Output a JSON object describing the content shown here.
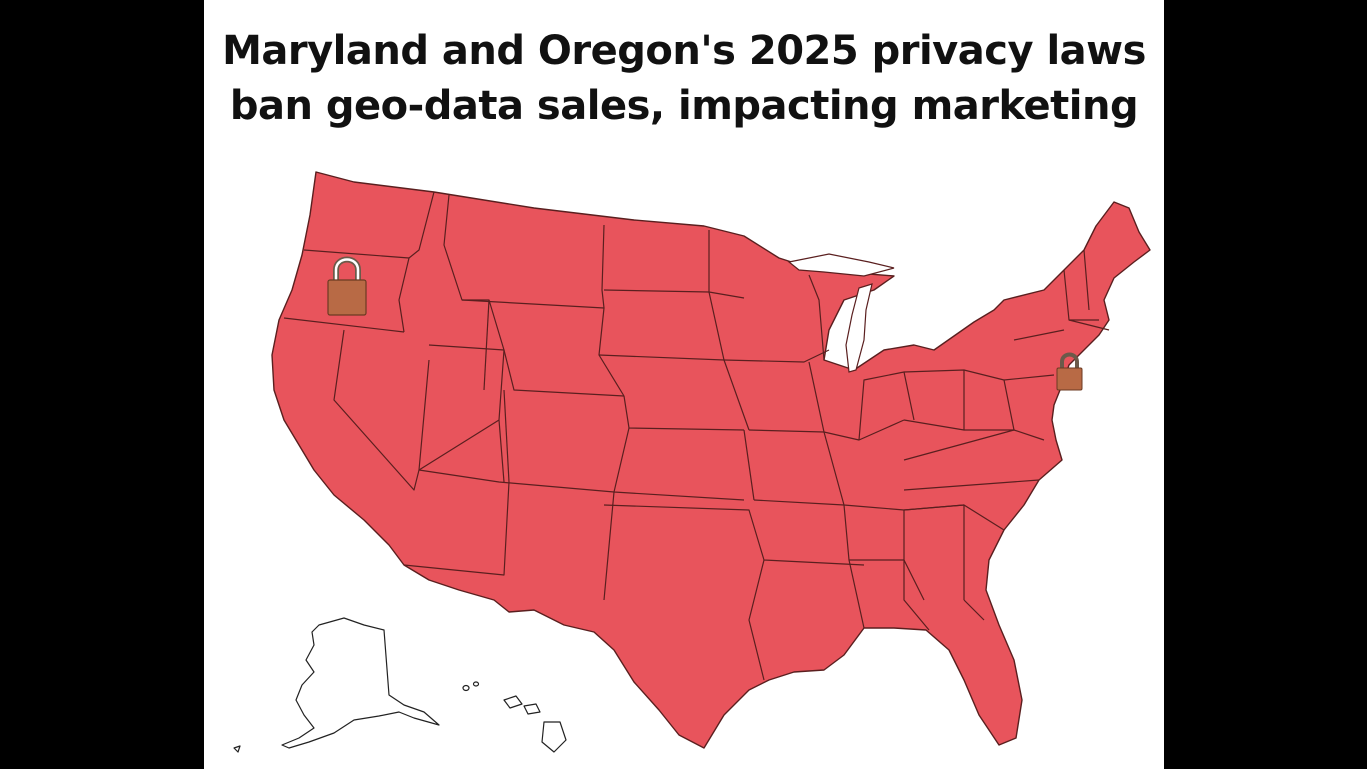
{
  "headline": {
    "line1": "Maryland and Oregon's 2025 privacy laws",
    "line2": "ban geo-data sales, impacting marketing"
  },
  "map": {
    "region": "United States",
    "state_fill_color": "#e8545c",
    "state_border_color": "#5a1f1f",
    "background_color": "#ffffff",
    "lock_color": "#b86a45",
    "markers": [
      {
        "state": "Oregon",
        "icon": "padlock-icon"
      },
      {
        "state": "Maryland",
        "icon": "padlock-icon"
      }
    ]
  }
}
